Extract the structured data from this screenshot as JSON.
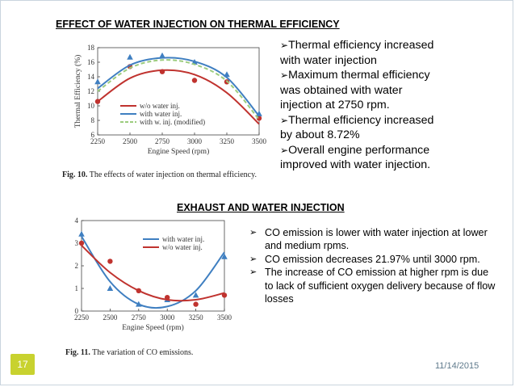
{
  "slide": {
    "title_top": "EFFECT OF WATER INJECTION ON THERMAL EFFICIENCY",
    "title_mid": "EXHAUST AND WATER INJECTION",
    "page_number": "17",
    "date": "11/14/2015",
    "accent_color": "#c8d22f"
  },
  "bullets_thermal": [
    "Thermal efficiency increased with water injection",
    "Maximum thermal efficiency was   obtained with water injection at 2750 rpm.",
    "Thermal efficiency increased by about 8.72%",
    "Overall engine performance improved with water injection."
  ],
  "bullets_co": [
    "CO emission is lower with water injection at lower and medium rpms.",
    "CO emission decreases 21.97% until 3000 rpm.",
    "The increase of CO emission at higher rpm is due to lack of sufficient oxygen delivery because of flow losses"
  ],
  "chart_data": [
    {
      "type": "scatter",
      "caption_label": "Fig. 10.",
      "caption_text": "The effects of water injection on thermal efficiency.",
      "xlabel": "Engine Speed (rpm)",
      "ylabel": "Thermal Efficiency (%)",
      "x": [
        2250,
        2500,
        2750,
        3000,
        3250,
        3500
      ],
      "xlim": [
        2250,
        3500
      ],
      "ylim": [
        6,
        18
      ],
      "yticks": [
        6,
        8,
        10,
        12,
        14,
        16,
        18
      ],
      "legend_position": "bottom-right",
      "series": [
        {
          "name": "w/o water inj.",
          "color": "#c0332f",
          "style": "solid",
          "marker": "circle",
          "points": [
            10.6,
            15.4,
            14.7,
            13.5,
            13.3,
            8.3
          ],
          "curve": [
            10.6,
            13.8,
            14.9,
            14.3,
            11.8,
            7.5
          ]
        },
        {
          "name": "with water inj.",
          "color": "#3f7fc1",
          "style": "solid",
          "marker": "triangle",
          "points": [
            13.3,
            16.7,
            16.9,
            16.0,
            14.3,
            8.9
          ],
          "curve": [
            12.4,
            15.6,
            16.6,
            16.1,
            13.9,
            8.6
          ]
        },
        {
          "name": "with w. inj. (modified)",
          "color": "#9ccc7e",
          "style": "dashed",
          "marker": "none",
          "points": [],
          "curve": [
            12.0,
            15.2,
            16.3,
            15.7,
            13.4,
            8.1
          ]
        }
      ]
    },
    {
      "type": "scatter",
      "caption_label": "Fig. 11.",
      "caption_text": "The variation of CO emissions.",
      "xlabel": "Engine Speed (rpm)",
      "ylabel": "CO (vol. %)",
      "x": [
        2250,
        2500,
        2750,
        3000,
        3250,
        3500
      ],
      "xlim": [
        2250,
        3500
      ],
      "ylim": [
        0,
        4
      ],
      "yticks": [
        0,
        1,
        2,
        3,
        4
      ],
      "legend_position": "top-right",
      "series": [
        {
          "name": "with water inj.",
          "color": "#3f7fc1",
          "style": "solid",
          "marker": "triangle",
          "points": [
            3.4,
            1.0,
            0.3,
            0.5,
            0.7,
            2.4
          ],
          "curve": [
            3.3,
            1.3,
            0.3,
            0.2,
            0.9,
            2.6
          ]
        },
        {
          "name": "w/o water inj.",
          "color": "#c0332f",
          "style": "solid",
          "marker": "circle",
          "points": [
            3.0,
            2.2,
            0.9,
            0.6,
            0.3,
            0.7
          ],
          "curve": [
            2.9,
            1.7,
            0.9,
            0.5,
            0.5,
            0.8
          ]
        }
      ]
    }
  ]
}
